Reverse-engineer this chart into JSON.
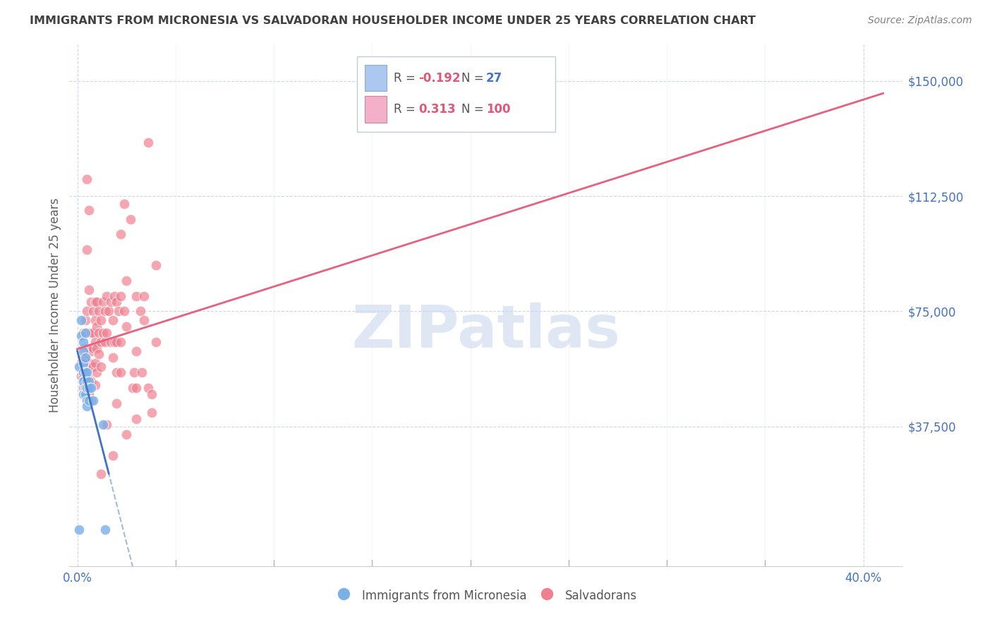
{
  "title": "IMMIGRANTS FROM MICRONESIA VS SALVADORAN HOUSEHOLDER INCOME UNDER 25 YEARS CORRELATION CHART",
  "source": "Source: ZipAtlas.com",
  "ylabel": "Householder Income Under 25 years",
  "xlabel_ticks": [
    "0.0%",
    "40.0%"
  ],
  "xlabel_tick_vals": [
    0.0,
    0.4
  ],
  "ylabel_ticks": [
    "$37,500",
    "$75,000",
    "$112,500",
    "$150,000"
  ],
  "ylabel_tick_vals": [
    37500,
    75000,
    112500,
    150000
  ],
  "xlim": [
    -0.004,
    0.42
  ],
  "ylim": [
    -8000,
    162000
  ],
  "watermark": "ZIPatlas",
  "micronesia_scatter": [
    [
      0.001,
      57000
    ],
    [
      0.002,
      72000
    ],
    [
      0.002,
      67000
    ],
    [
      0.003,
      65000
    ],
    [
      0.003,
      62000
    ],
    [
      0.003,
      58000
    ],
    [
      0.003,
      55000
    ],
    [
      0.003,
      52000
    ],
    [
      0.003,
      48000
    ],
    [
      0.004,
      68000
    ],
    [
      0.004,
      60000
    ],
    [
      0.004,
      55000
    ],
    [
      0.004,
      50000
    ],
    [
      0.004,
      48000
    ],
    [
      0.005,
      55000
    ],
    [
      0.005,
      52000
    ],
    [
      0.005,
      50000
    ],
    [
      0.005,
      46000
    ],
    [
      0.005,
      44000
    ],
    [
      0.006,
      52000
    ],
    [
      0.006,
      50000
    ],
    [
      0.006,
      46000
    ],
    [
      0.007,
      50000
    ],
    [
      0.008,
      46000
    ],
    [
      0.001,
      4000
    ],
    [
      0.014,
      4000
    ],
    [
      0.013,
      38000
    ]
  ],
  "salvadoran_scatter": [
    [
      0.002,
      58000
    ],
    [
      0.002,
      54000
    ],
    [
      0.003,
      68000
    ],
    [
      0.003,
      63000
    ],
    [
      0.003,
      60000
    ],
    [
      0.003,
      57000
    ],
    [
      0.003,
      54000
    ],
    [
      0.003,
      50000
    ],
    [
      0.004,
      72000
    ],
    [
      0.004,
      68000
    ],
    [
      0.004,
      63000
    ],
    [
      0.004,
      59000
    ],
    [
      0.004,
      55000
    ],
    [
      0.004,
      51000
    ],
    [
      0.004,
      47000
    ],
    [
      0.005,
      118000
    ],
    [
      0.005,
      95000
    ],
    [
      0.005,
      75000
    ],
    [
      0.005,
      68000
    ],
    [
      0.005,
      63000
    ],
    [
      0.005,
      59000
    ],
    [
      0.005,
      55000
    ],
    [
      0.005,
      51000
    ],
    [
      0.005,
      47000
    ],
    [
      0.006,
      108000
    ],
    [
      0.006,
      82000
    ],
    [
      0.006,
      68000
    ],
    [
      0.006,
      63000
    ],
    [
      0.006,
      58000
    ],
    [
      0.006,
      53000
    ],
    [
      0.006,
      48000
    ],
    [
      0.007,
      78000
    ],
    [
      0.007,
      68000
    ],
    [
      0.007,
      62000
    ],
    [
      0.007,
      57000
    ],
    [
      0.007,
      52000
    ],
    [
      0.007,
      46000
    ],
    [
      0.008,
      75000
    ],
    [
      0.008,
      68000
    ],
    [
      0.008,
      63000
    ],
    [
      0.008,
      57000
    ],
    [
      0.009,
      78000
    ],
    [
      0.009,
      72000
    ],
    [
      0.009,
      65000
    ],
    [
      0.009,
      58000
    ],
    [
      0.009,
      51000
    ],
    [
      0.01,
      78000
    ],
    [
      0.01,
      70000
    ],
    [
      0.01,
      63000
    ],
    [
      0.01,
      55000
    ],
    [
      0.011,
      75000
    ],
    [
      0.011,
      68000
    ],
    [
      0.011,
      61000
    ],
    [
      0.012,
      72000
    ],
    [
      0.012,
      65000
    ],
    [
      0.012,
      57000
    ],
    [
      0.012,
      22000
    ],
    [
      0.013,
      78000
    ],
    [
      0.013,
      68000
    ],
    [
      0.014,
      75000
    ],
    [
      0.014,
      65000
    ],
    [
      0.015,
      80000
    ],
    [
      0.015,
      68000
    ],
    [
      0.015,
      38000
    ],
    [
      0.016,
      75000
    ],
    [
      0.017,
      78000
    ],
    [
      0.017,
      65000
    ],
    [
      0.018,
      72000
    ],
    [
      0.018,
      60000
    ],
    [
      0.018,
      28000
    ],
    [
      0.019,
      80000
    ],
    [
      0.019,
      65000
    ],
    [
      0.02,
      78000
    ],
    [
      0.02,
      65000
    ],
    [
      0.02,
      55000
    ],
    [
      0.02,
      45000
    ],
    [
      0.021,
      75000
    ],
    [
      0.022,
      100000
    ],
    [
      0.022,
      80000
    ],
    [
      0.022,
      65000
    ],
    [
      0.022,
      55000
    ],
    [
      0.024,
      110000
    ],
    [
      0.024,
      75000
    ],
    [
      0.025,
      85000
    ],
    [
      0.025,
      70000
    ],
    [
      0.025,
      35000
    ],
    [
      0.027,
      105000
    ],
    [
      0.028,
      50000
    ],
    [
      0.029,
      55000
    ],
    [
      0.03,
      80000
    ],
    [
      0.03,
      62000
    ],
    [
      0.03,
      50000
    ],
    [
      0.03,
      40000
    ],
    [
      0.032,
      75000
    ],
    [
      0.033,
      55000
    ],
    [
      0.034,
      80000
    ],
    [
      0.034,
      72000
    ],
    [
      0.036,
      130000
    ],
    [
      0.036,
      50000
    ],
    [
      0.038,
      48000
    ],
    [
      0.038,
      42000
    ],
    [
      0.04,
      90000
    ],
    [
      0.04,
      65000
    ]
  ],
  "micronesia_color": "#7ab0e8",
  "salvadoran_color": "#f08090",
  "micronesia_line_color": "#4472c4",
  "salvadoran_line_color": "#e86080",
  "dashed_line_color": "#a0bcd8",
  "bg_color": "#ffffff",
  "grid_color": "#ccd8e8",
  "title_color": "#404040",
  "tick_color": "#4472c4",
  "ylabel_color": "#606060",
  "watermark_color": "#c8d8ec",
  "legend_blue_bg": "#adc8f0",
  "legend_pink_bg": "#f4b0c8",
  "legend_border": "#c0ccd8",
  "source_color": "#808080"
}
